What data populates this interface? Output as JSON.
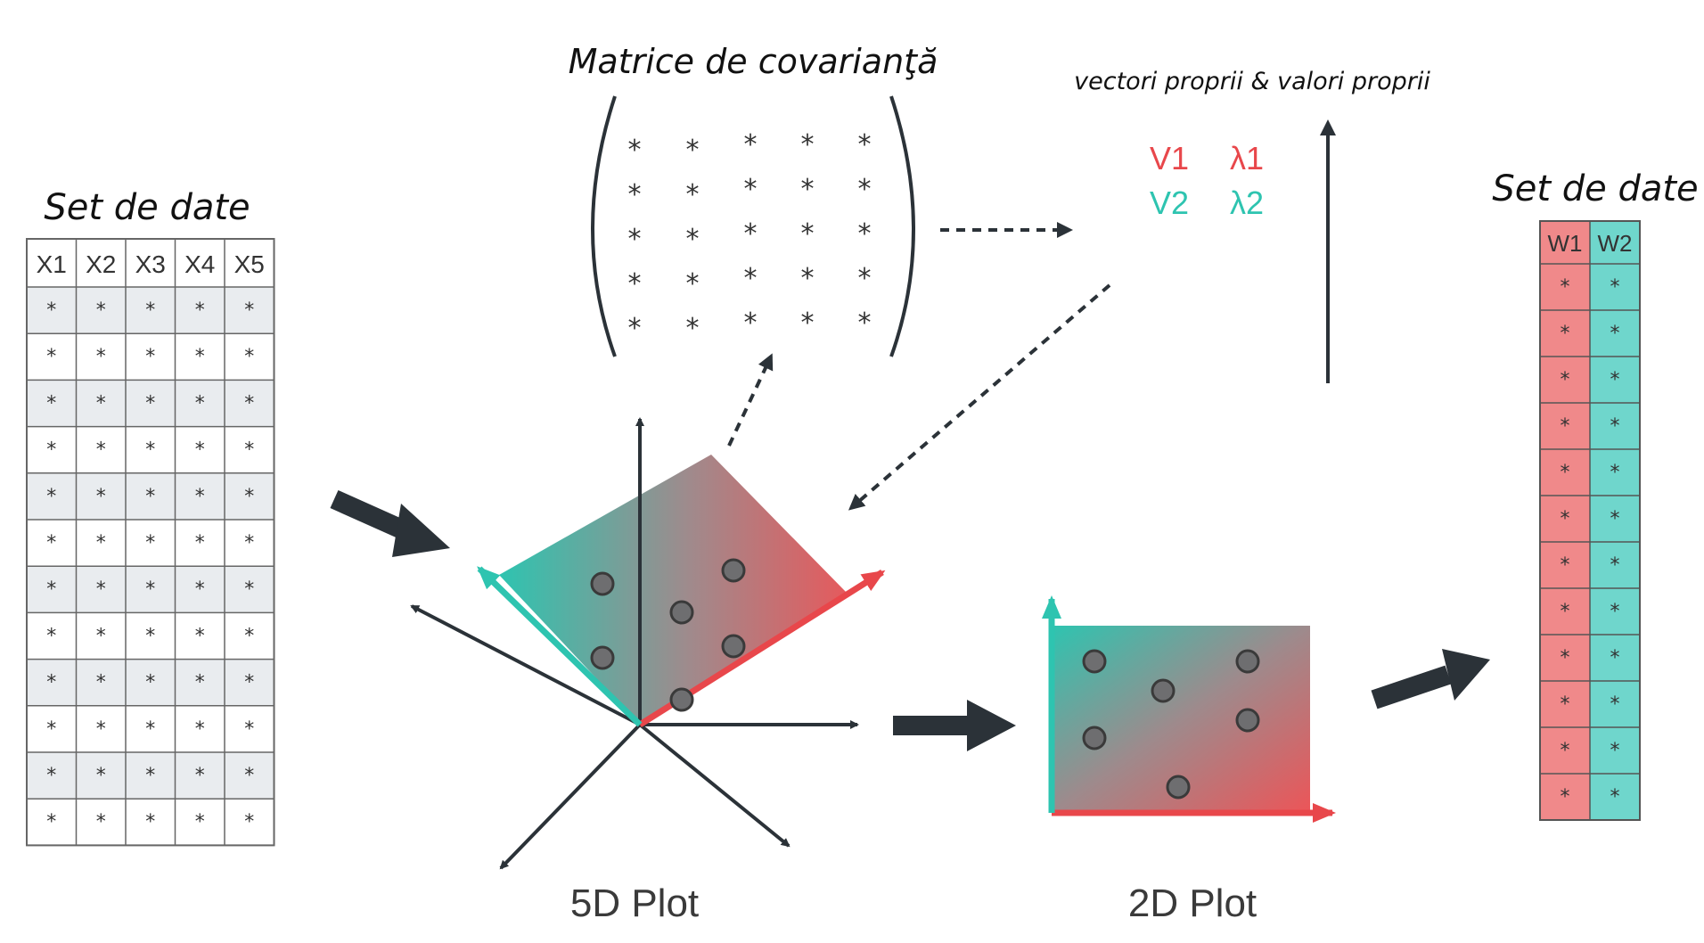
{
  "left_dataset": {
    "title": "Set de date",
    "headers": [
      "X1",
      "X2",
      "X3",
      "X4",
      "X5"
    ],
    "cell": "*",
    "row_count": 12
  },
  "covariance": {
    "title": "Matrice de covarianţă",
    "cell": "*",
    "size": 5
  },
  "eigen": {
    "caption": "vectori proprii & valori proprii",
    "v1": "V1",
    "v2": "V2",
    "l1": "λ1",
    "l2": "λ2"
  },
  "plot5d": {
    "label": "5D Plot",
    "points": 6
  },
  "plot2d": {
    "label": "2D Plot",
    "points": 6
  },
  "right_dataset": {
    "title": "Set de date",
    "headers": [
      "W1",
      "W2"
    ],
    "cell": "*",
    "row_count": 12
  },
  "colors": {
    "red": "#e8474b",
    "teal": "#2ec4b0",
    "dark": "#2b3238",
    "w1_fill": "#f0898a",
    "w2_fill": "#6fd6cc",
    "row_shade": "#e9ecef"
  },
  "icons": [
    "arrow-right-icon",
    "dotted-arrow-icon",
    "axis-arrow-icon"
  ]
}
